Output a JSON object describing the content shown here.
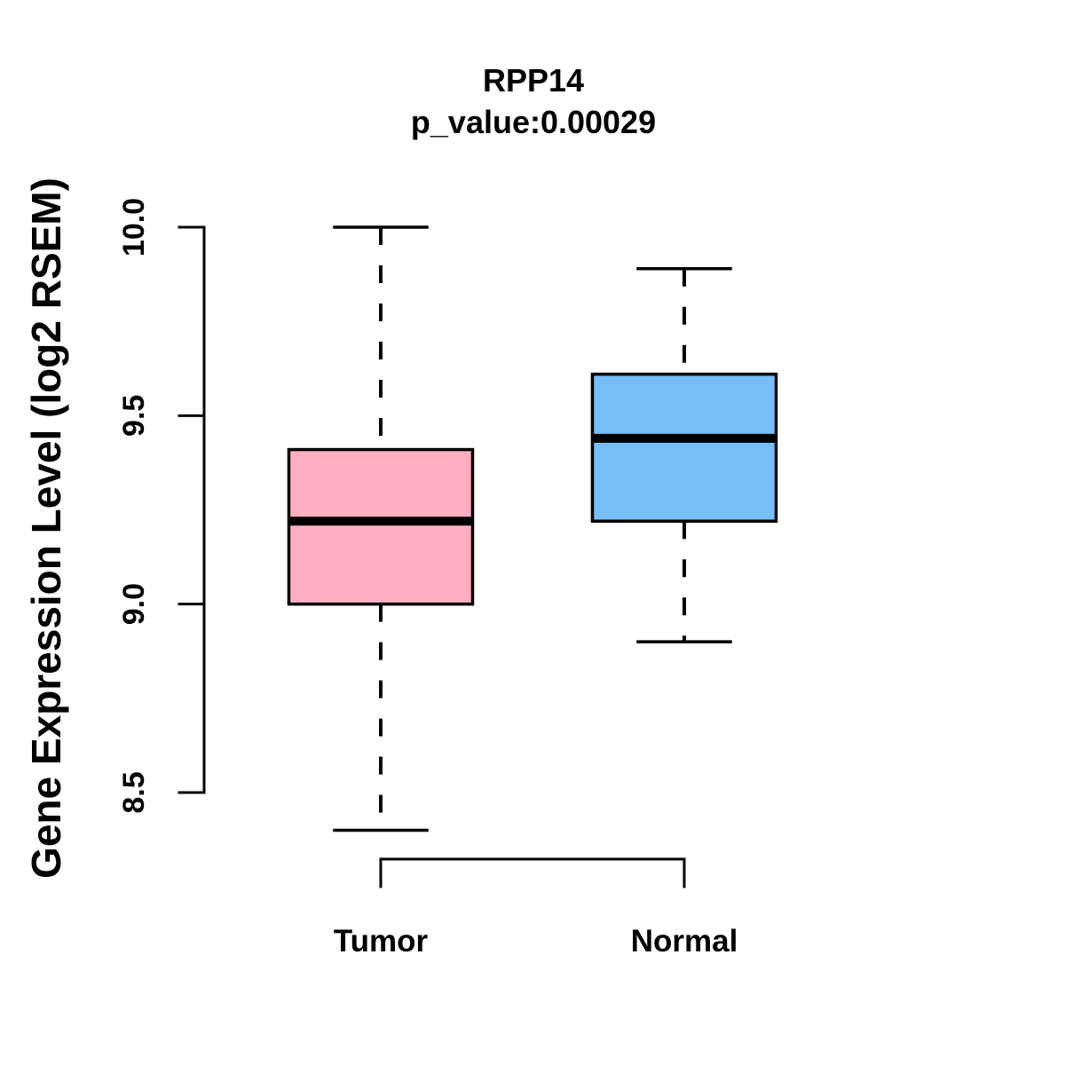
{
  "chart_data": {
    "type": "boxplot",
    "title": "RPP14",
    "subtitle": "p_value:0.00029",
    "ylabel": "Gene Expression Level (log2 RSEM)",
    "categories": [
      "Tumor",
      "Normal"
    ],
    "series": [
      {
        "name": "Tumor",
        "min": 8.4,
        "q1": 9.0,
        "median": 9.22,
        "q3": 9.41,
        "max": 10.0,
        "color": "#FFAFC1"
      },
      {
        "name": "Normal",
        "min": 8.9,
        "q1": 9.22,
        "median": 9.44,
        "q3": 9.61,
        "max": 9.89,
        "color": "#76BFF6"
      }
    ],
    "yticks": [
      10.0,
      9.5,
      9.0,
      8.5
    ],
    "ytick_labels": [
      "10.0",
      "9.5",
      "9.0",
      "8.5"
    ],
    "ylim": [
      8.5,
      10.0
    ],
    "grid": false,
    "legend": "none",
    "colors": {
      "stroke": "#000000",
      "background": "#FFFFFF"
    }
  }
}
